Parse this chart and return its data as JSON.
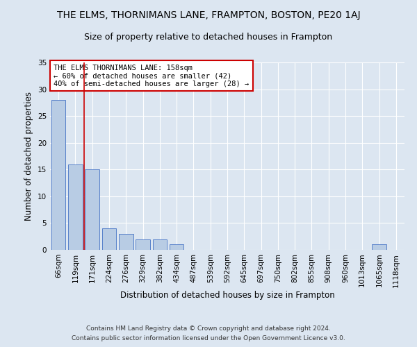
{
  "title": "THE ELMS, THORNIMANS LANE, FRAMPTON, BOSTON, PE20 1AJ",
  "subtitle": "Size of property relative to detached houses in Frampton",
  "xlabel": "Distribution of detached houses by size in Frampton",
  "ylabel": "Number of detached properties",
  "bar_labels": [
    "66sqm",
    "119sqm",
    "171sqm",
    "224sqm",
    "276sqm",
    "329sqm",
    "382sqm",
    "434sqm",
    "487sqm",
    "539sqm",
    "592sqm",
    "645sqm",
    "697sqm",
    "750sqm",
    "802sqm",
    "855sqm",
    "908sqm",
    "960sqm",
    "1013sqm",
    "1065sqm",
    "1118sqm"
  ],
  "bar_values": [
    28,
    16,
    15,
    4,
    3,
    2,
    2,
    1,
    0,
    0,
    0,
    0,
    0,
    0,
    0,
    0,
    0,
    0,
    0,
    1,
    0
  ],
  "bar_color": "#b8cce4",
  "bar_edge_color": "#4472c4",
  "background_color": "#dce6f1",
  "grid_color": "#ffffff",
  "vline_x_idx": 1.5,
  "vline_color": "#cc0000",
  "ylim": [
    0,
    35
  ],
  "yticks": [
    0,
    5,
    10,
    15,
    20,
    25,
    30,
    35
  ],
  "annotation_title": "THE ELMS THORNIMANS LANE: 158sqm",
  "annotation_line1": "← 60% of detached houses are smaller (42)",
  "annotation_line2": "40% of semi-detached houses are larger (28) →",
  "annotation_box_color": "#ffffff",
  "annotation_box_edge": "#cc0000",
  "footer_line1": "Contains HM Land Registry data © Crown copyright and database right 2024.",
  "footer_line2": "Contains public sector information licensed under the Open Government Licence v3.0.",
  "title_fontsize": 10,
  "subtitle_fontsize": 9,
  "xlabel_fontsize": 8.5,
  "ylabel_fontsize": 8.5,
  "tick_fontsize": 7.5,
  "annotation_fontsize": 7.5,
  "footer_fontsize": 6.5
}
